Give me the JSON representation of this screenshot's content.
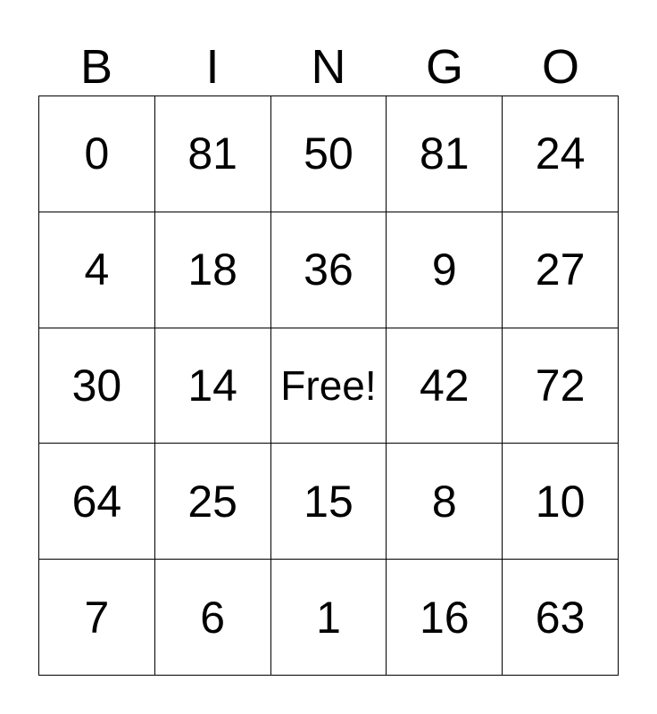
{
  "header": [
    "B",
    "I",
    "N",
    "G",
    "O"
  ],
  "rows": [
    [
      "0",
      "81",
      "50",
      "81",
      "24"
    ],
    [
      "4",
      "18",
      "36",
      "9",
      "27"
    ],
    [
      "30",
      "14",
      "Free!",
      "42",
      "72"
    ],
    [
      "64",
      "25",
      "15",
      "8",
      "10"
    ],
    [
      "7",
      "6",
      "1",
      "16",
      "63"
    ]
  ]
}
